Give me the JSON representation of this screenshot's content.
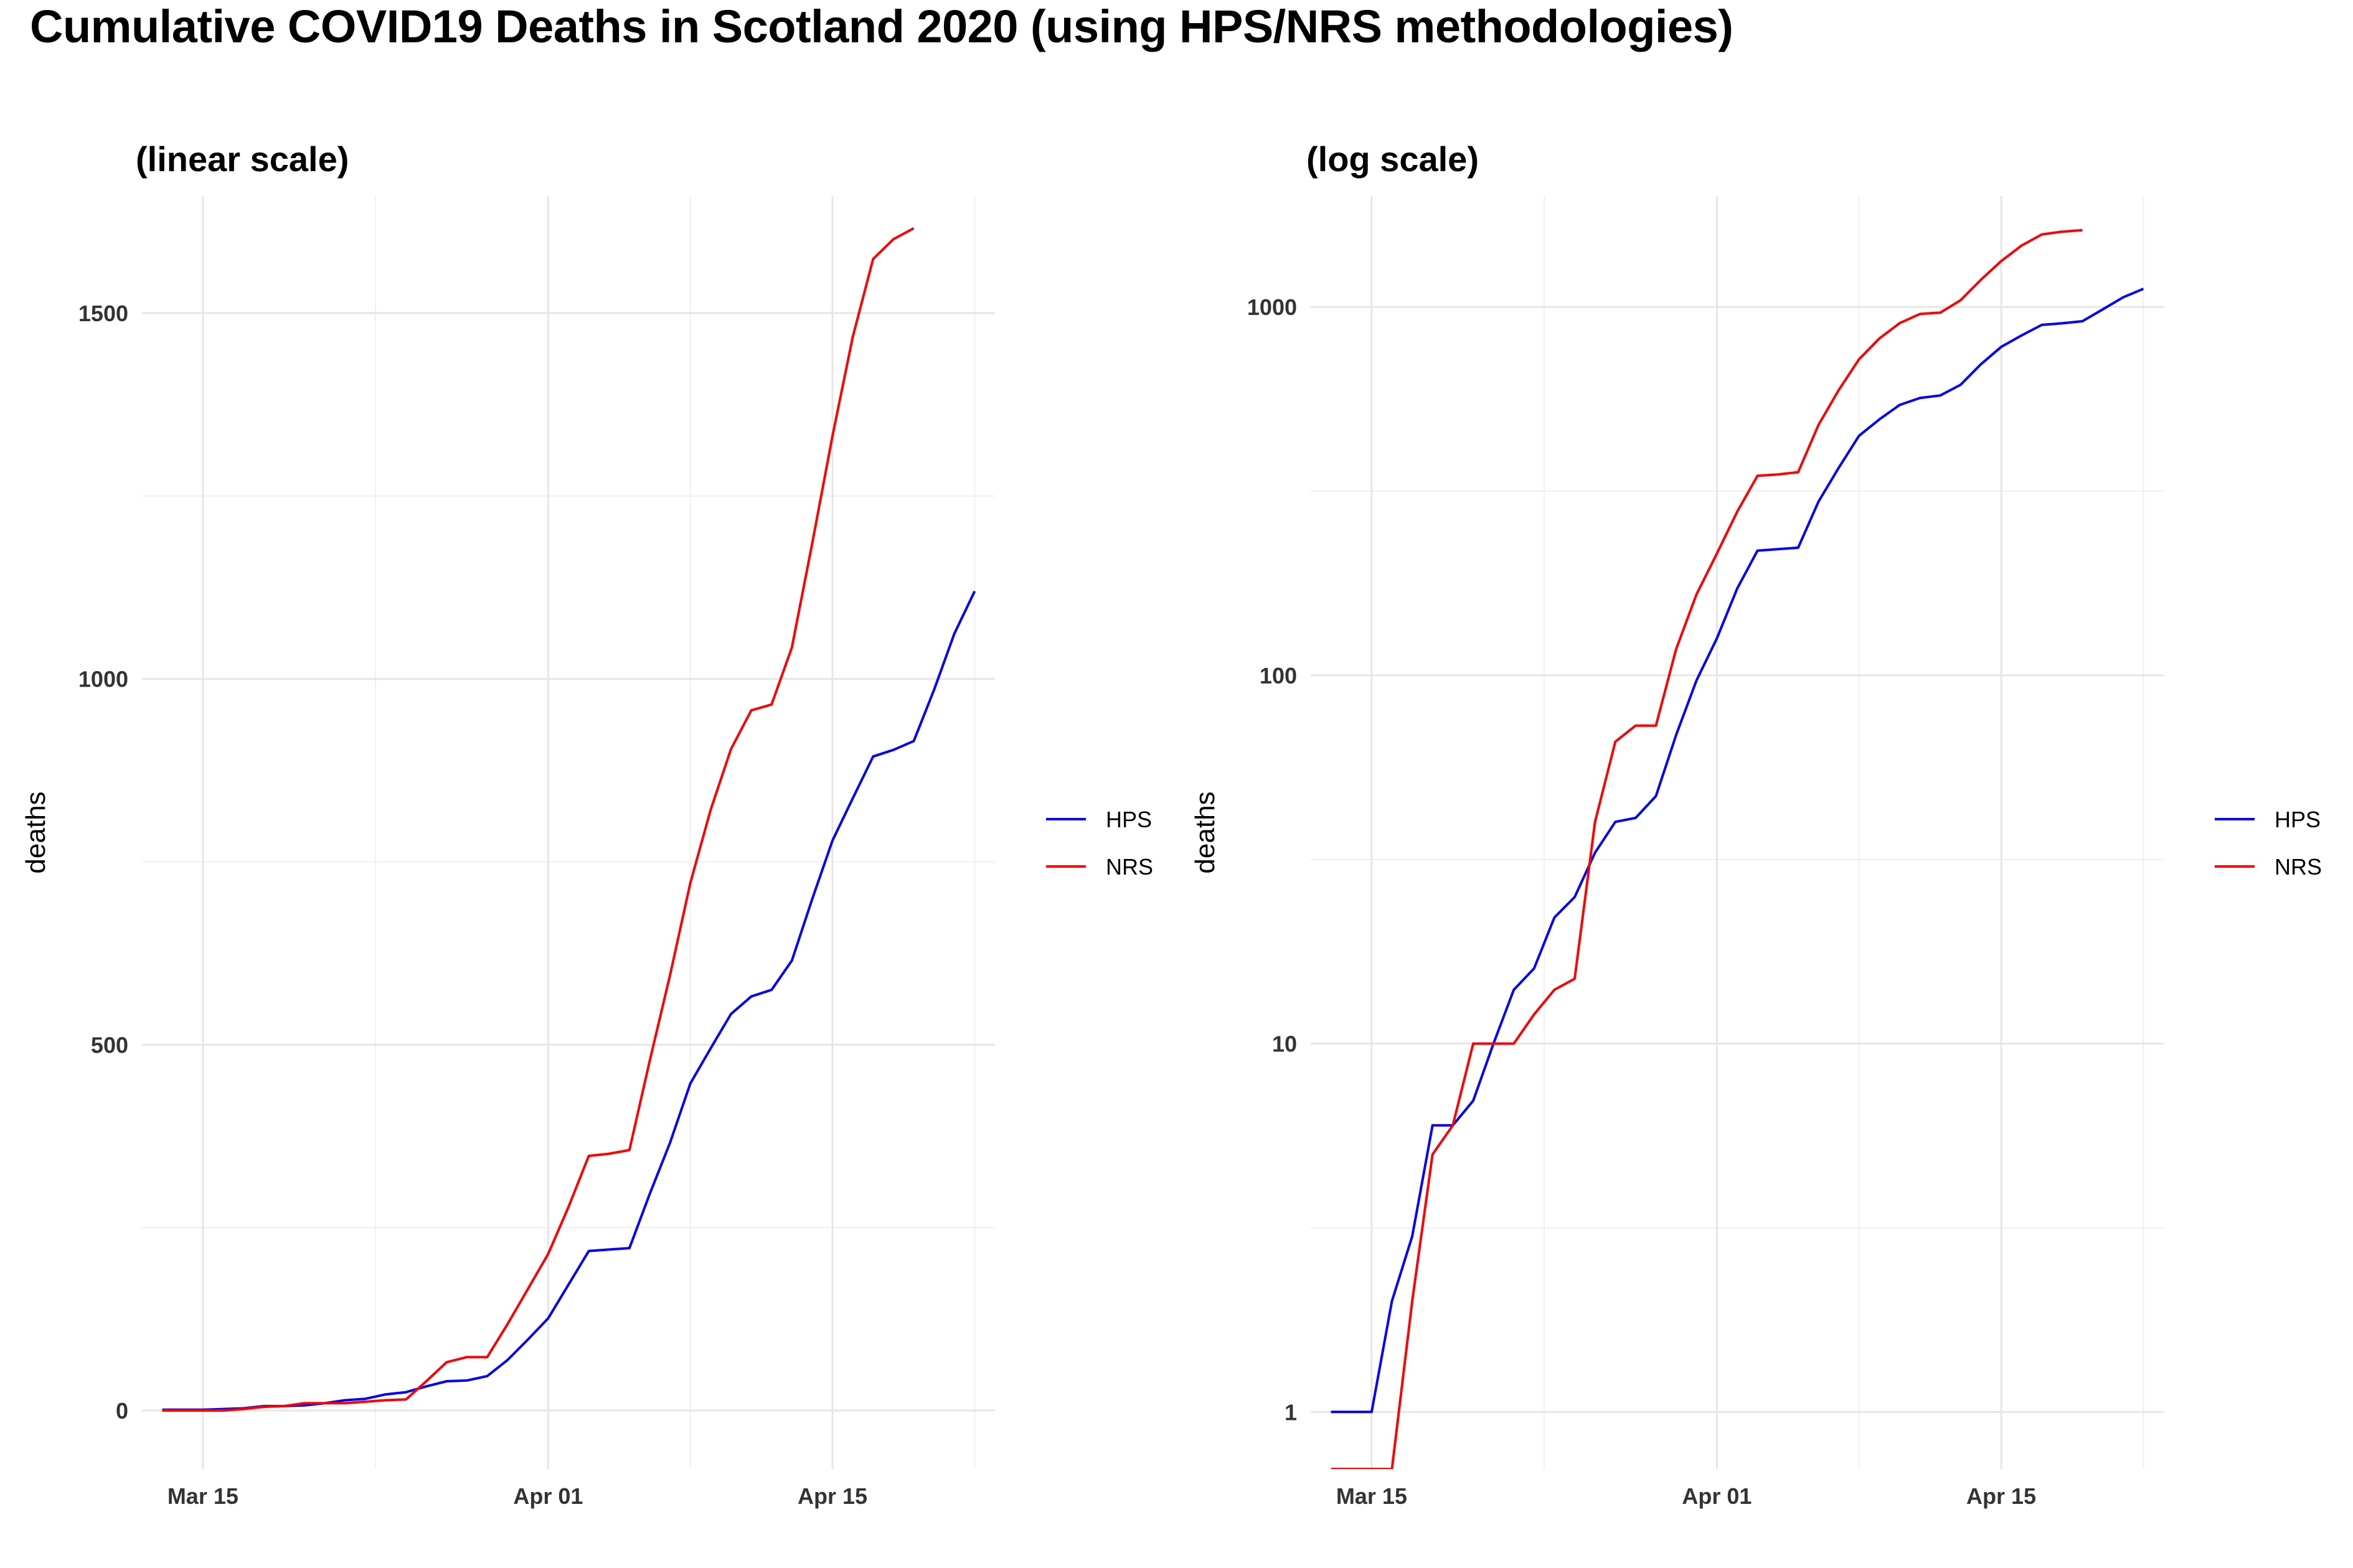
{
  "title": "Cumulative COVID19 Deaths in Scotland 2020 (using HPS/NRS methodologies)",
  "colors": {
    "HPS": "#0000ff",
    "NRS": "#ff0000",
    "grid": "#e6e6e6"
  },
  "chart_data": [
    {
      "type": "line",
      "subtitle": "(linear scale)",
      "ylabel": "deaths",
      "xlabel": "",
      "scale": "linear",
      "xlim": [
        "2020-03-12",
        "2020-04-23"
      ],
      "ylim": [
        -80,
        1660
      ],
      "x_ticks": [
        {
          "date": "2020-03-15",
          "label": "Mar 15"
        },
        {
          "date": "2020-04-01",
          "label": "Apr 01"
        },
        {
          "date": "2020-04-15",
          "label": "Apr 15"
        }
      ],
      "y_ticks": [
        0,
        500,
        1000,
        1500
      ],
      "grid": true,
      "legend_position": "right",
      "legend": [
        "HPS",
        "NRS"
      ],
      "series": [
        {
          "name": "HPS",
          "x": [
            "2020-03-13",
            "2020-03-14",
            "2020-03-15",
            "2020-03-16",
            "2020-03-17",
            "2020-03-18",
            "2020-03-19",
            "2020-03-20",
            "2020-03-21",
            "2020-03-22",
            "2020-03-23",
            "2020-03-24",
            "2020-03-25",
            "2020-03-26",
            "2020-03-27",
            "2020-03-28",
            "2020-03-29",
            "2020-03-30",
            "2020-03-31",
            "2020-04-01",
            "2020-04-02",
            "2020-04-03",
            "2020-04-04",
            "2020-04-05",
            "2020-04-06",
            "2020-04-07",
            "2020-04-08",
            "2020-04-09",
            "2020-04-10",
            "2020-04-11",
            "2020-04-12",
            "2020-04-13",
            "2020-04-14",
            "2020-04-15",
            "2020-04-16",
            "2020-04-17",
            "2020-04-18",
            "2020-04-19",
            "2020-04-20",
            "2020-04-21",
            "2020-04-22"
          ],
          "y": [
            1,
            1,
            1,
            2,
            3,
            6,
            6,
            7,
            10,
            14,
            16,
            22,
            25,
            33,
            40,
            41,
            47,
            69,
            97,
            126,
            172,
            218,
            220,
            222,
            296,
            366,
            447,
            495,
            542,
            566,
            575,
            615,
            699,
            779,
            837,
            894,
            903,
            915,
            985,
            1062,
            1120
          ]
        },
        {
          "name": "NRS",
          "x": [
            "2020-03-13",
            "2020-03-14",
            "2020-03-15",
            "2020-03-16",
            "2020-03-17",
            "2020-03-18",
            "2020-03-19",
            "2020-03-20",
            "2020-03-21",
            "2020-03-22",
            "2020-03-23",
            "2020-03-24",
            "2020-03-25",
            "2020-03-26",
            "2020-03-27",
            "2020-03-28",
            "2020-03-29",
            "2020-03-30",
            "2020-03-31",
            "2020-04-01",
            "2020-04-02",
            "2020-04-03",
            "2020-04-04",
            "2020-04-05",
            "2020-04-06",
            "2020-04-07",
            "2020-04-08",
            "2020-04-09",
            "2020-04-10",
            "2020-04-11",
            "2020-04-12",
            "2020-04-13",
            "2020-04-14",
            "2020-04-15",
            "2020-04-16",
            "2020-04-17",
            "2020-04-18",
            "2020-04-19"
          ],
          "y": [
            0,
            0,
            0,
            0,
            2,
            5,
            6,
            10,
            10,
            10,
            12,
            14,
            15,
            40,
            66,
            73,
            73,
            118,
            166,
            214,
            278,
            348,
            351,
            356,
            478,
            595,
            721,
            821,
            904,
            957,
            965,
            1043,
            1185,
            1332,
            1468,
            1574,
            1601,
            1616
          ]
        }
      ]
    },
    {
      "type": "line",
      "subtitle": "(log scale)",
      "ylabel": "deaths",
      "xlabel": "",
      "scale": "log",
      "xlim": [
        "2020-03-12",
        "2020-04-23"
      ],
      "ylim": [
        0.7,
        2000
      ],
      "x_ticks": [
        {
          "date": "2020-03-15",
          "label": "Mar 15"
        },
        {
          "date": "2020-04-01",
          "label": "Apr 01"
        },
        {
          "date": "2020-04-15",
          "label": "Apr 15"
        }
      ],
      "y_ticks": [
        1,
        10,
        100,
        1000
      ],
      "grid": true,
      "legend_position": "right",
      "legend": [
        "HPS",
        "NRS"
      ],
      "series": [
        {
          "name": "HPS",
          "x": [
            "2020-03-13",
            "2020-03-14",
            "2020-03-15",
            "2020-03-16",
            "2020-03-17",
            "2020-03-18",
            "2020-03-19",
            "2020-03-20",
            "2020-03-21",
            "2020-03-22",
            "2020-03-23",
            "2020-03-24",
            "2020-03-25",
            "2020-03-26",
            "2020-03-27",
            "2020-03-28",
            "2020-03-29",
            "2020-03-30",
            "2020-03-31",
            "2020-04-01",
            "2020-04-02",
            "2020-04-03",
            "2020-04-04",
            "2020-04-05",
            "2020-04-06",
            "2020-04-07",
            "2020-04-08",
            "2020-04-09",
            "2020-04-10",
            "2020-04-11",
            "2020-04-12",
            "2020-04-13",
            "2020-04-14",
            "2020-04-15",
            "2020-04-16",
            "2020-04-17",
            "2020-04-18",
            "2020-04-19",
            "2020-04-20",
            "2020-04-21",
            "2020-04-22"
          ],
          "y": [
            1,
            1,
            1,
            2,
            3,
            6,
            6,
            7,
            10,
            14,
            16,
            22,
            25,
            33,
            40,
            41,
            47,
            69,
            97,
            126,
            172,
            218,
            220,
            222,
            296,
            366,
            447,
            495,
            542,
            566,
            575,
            615,
            699,
            779,
            837,
            894,
            903,
            915,
            985,
            1062,
            1120
          ]
        },
        {
          "name": "NRS",
          "x": [
            "2020-03-13",
            "2020-03-14",
            "2020-03-15",
            "2020-03-16",
            "2020-03-17",
            "2020-03-18",
            "2020-03-19",
            "2020-03-20",
            "2020-03-21",
            "2020-03-22",
            "2020-03-23",
            "2020-03-24",
            "2020-03-25",
            "2020-03-26",
            "2020-03-27",
            "2020-03-28",
            "2020-03-29",
            "2020-03-30",
            "2020-03-31",
            "2020-04-01",
            "2020-04-02",
            "2020-04-03",
            "2020-04-04",
            "2020-04-05",
            "2020-04-06",
            "2020-04-07",
            "2020-04-08",
            "2020-04-09",
            "2020-04-10",
            "2020-04-11",
            "2020-04-12",
            "2020-04-13",
            "2020-04-14",
            "2020-04-15",
            "2020-04-16",
            "2020-04-17",
            "2020-04-18",
            "2020-04-19"
          ],
          "y": [
            0,
            0,
            0,
            0,
            2,
            5,
            6,
            10,
            10,
            10,
            12,
            14,
            15,
            40,
            66,
            73,
            73,
            118,
            166,
            214,
            278,
            348,
            351,
            356,
            478,
            595,
            721,
            821,
            904,
            957,
            965,
            1043,
            1185,
            1332,
            1468,
            1574,
            1601,
            1616
          ]
        }
      ]
    }
  ]
}
